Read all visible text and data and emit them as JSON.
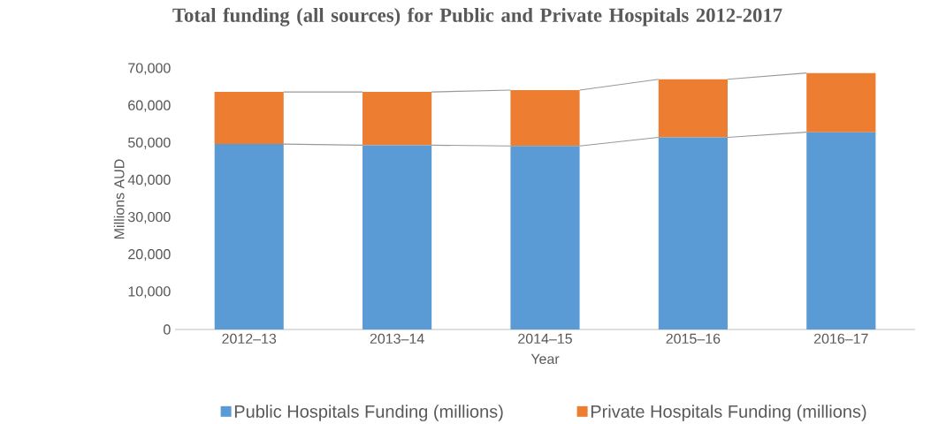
{
  "chart_data": {
    "type": "bar",
    "stacked": true,
    "title": "Total funding (all sources) for Public and Private Hospitals 2012-2017",
    "xlabel": "Year",
    "ylabel": "Millions AUD",
    "categories": [
      "2012–13",
      "2013–14",
      "2014–15",
      "2015–16",
      "2016–17"
    ],
    "series": [
      {
        "name": "Public Hospitals Funding (millions)",
        "color": "#5b9bd5",
        "values": [
          49800,
          49500,
          49300,
          51600,
          53000
        ]
      },
      {
        "name": "Private Hospitals Funding (millions)",
        "color": "#ed7d31",
        "values": [
          14000,
          14300,
          15000,
          15600,
          15900
        ]
      }
    ],
    "ylim": [
      0,
      70000
    ],
    "yticks": [
      {
        "value": 0,
        "label": "0"
      },
      {
        "value": 10000,
        "label": "10,000"
      },
      {
        "value": 20000,
        "label": "20,000"
      },
      {
        "value": 30000,
        "label": "30,000"
      },
      {
        "value": 40000,
        "label": "40,000"
      },
      {
        "value": 50000,
        "label": "50,000"
      },
      {
        "value": 60000,
        "label": "60,000"
      },
      {
        "value": 70000,
        "label": "70,000"
      }
    ],
    "grid": false,
    "legend": "bottom"
  }
}
